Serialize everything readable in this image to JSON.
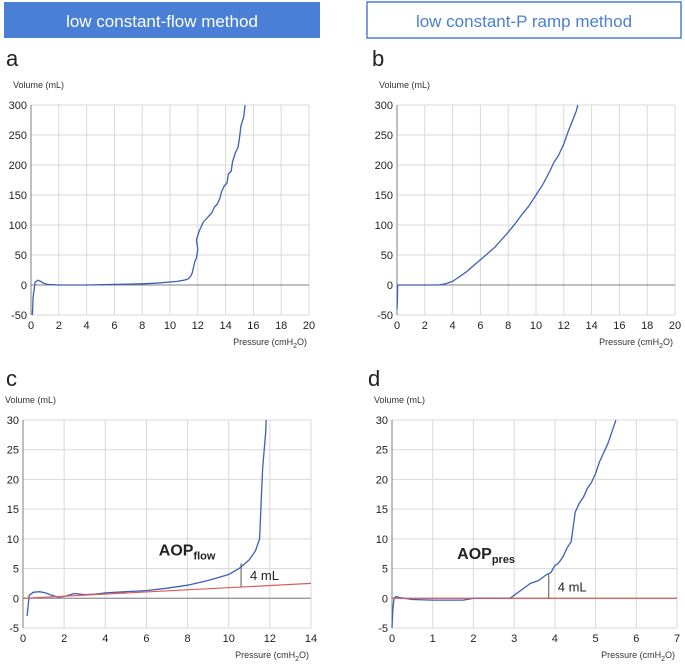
{
  "headers": {
    "left": "low constant-flow method",
    "right": "low constant-P ramp method",
    "left_fill": "#4a7fd6",
    "right_border": "#4a7fd6"
  },
  "colors": {
    "curve": "#3d5fb8",
    "fit_line": "#e05a5a",
    "grid": "#d9d9d9",
    "axis": "#7f7f7f",
    "marker": "#555555"
  },
  "chart_data": [
    {
      "panel": "a",
      "type": "line",
      "ylabel": "Volume (mL)",
      "xlabel": "Pressure (cmH2O)",
      "xlim": [
        0,
        20
      ],
      "ylim": [
        -50,
        300
      ],
      "xticks": [
        0,
        2,
        4,
        6,
        8,
        10,
        12,
        14,
        16,
        18,
        20
      ],
      "yticks": [
        -50,
        0,
        50,
        100,
        150,
        200,
        250,
        300
      ],
      "grid": true,
      "series": [
        {
          "x": [
            0.1,
            0.15,
            0.3,
            0.5,
            0.7,
            0.9,
            1.2,
            2,
            4,
            6,
            8,
            9,
            10,
            10.5,
            11,
            11.3,
            11.5,
            11.6,
            11.7,
            11.8,
            11.9,
            12.0,
            11.9,
            12.1,
            12.3,
            12.4,
            12.6,
            12.8,
            13.0,
            13.2,
            13.4,
            13.6,
            13.7,
            13.9,
            14.1,
            14.2,
            14.4,
            14.5,
            14.7,
            14.9,
            15.0,
            15.1,
            15.3,
            15.4
          ],
          "y": [
            -50,
            -20,
            5,
            8,
            6,
            3,
            1,
            0,
            0,
            1,
            2,
            3,
            5,
            6,
            8,
            10,
            15,
            20,
            30,
            40,
            45,
            60,
            75,
            90,
            100,
            105,
            110,
            115,
            120,
            130,
            135,
            145,
            155,
            165,
            170,
            185,
            190,
            205,
            220,
            230,
            245,
            265,
            280,
            300
          ]
        }
      ]
    },
    {
      "panel": "b",
      "type": "line",
      "ylabel": "Volume (mL)",
      "xlabel": "Pressure (cmH2O)",
      "xlim": [
        0,
        20
      ],
      "ylim": [
        -50,
        300
      ],
      "xticks": [
        0,
        2,
        4,
        6,
        8,
        10,
        12,
        14,
        16,
        18,
        20
      ],
      "yticks": [
        -50,
        0,
        50,
        100,
        150,
        200,
        250,
        300
      ],
      "grid": true,
      "series": [
        {
          "x": [
            0,
            0.02,
            0.05,
            1,
            2,
            3,
            3.5,
            4,
            4.5,
            5,
            5.5,
            6,
            6.5,
            7,
            7.5,
            8,
            8.5,
            9,
            9.5,
            10,
            10.5,
            11,
            11.3,
            11.6,
            12,
            12.3,
            12.6,
            12.9,
            13.0
          ],
          "y": [
            -40,
            -30,
            0,
            0,
            0,
            0,
            2,
            6,
            14,
            22,
            32,
            42,
            52,
            62,
            75,
            88,
            102,
            118,
            132,
            150,
            168,
            190,
            205,
            215,
            235,
            255,
            272,
            290,
            300
          ]
        }
      ]
    },
    {
      "panel": "c",
      "type": "line",
      "ylabel": "Volume (mL)",
      "xlabel": "Pressure (cmH2O)",
      "xlim": [
        0,
        14
      ],
      "ylim": [
        -5,
        30
      ],
      "xticks": [
        0,
        2,
        4,
        6,
        8,
        10,
        12,
        14
      ],
      "yticks": [
        -5,
        0,
        5,
        10,
        15,
        20,
        25,
        30
      ],
      "grid": true,
      "annotation": "AOP",
      "annotation_sub": "flow",
      "marker_text": "4 mL",
      "marker_x": 10.6,
      "series": [
        {
          "x": [
            0.2,
            0.3,
            0.5,
            0.8,
            1.1,
            1.4,
            1.7,
            2.0,
            2.5,
            3.0,
            3.5,
            4.0,
            5.0,
            6.0,
            7.0,
            8.0,
            9.0,
            10.0,
            10.5,
            11.0,
            11.3,
            11.5,
            11.55,
            11.6,
            11.65,
            11.7,
            11.75,
            11.8,
            11.82
          ],
          "y": [
            -3,
            0.5,
            1.0,
            1.1,
            0.9,
            0.5,
            0.2,
            0.3,
            0.8,
            0.6,
            0.7,
            0.9,
            1.1,
            1.3,
            1.7,
            2.2,
            3.0,
            4.0,
            5.0,
            6.5,
            8.0,
            10.0,
            14,
            18,
            22,
            24,
            26,
            28,
            30
          ]
        },
        {
          "name": "fit",
          "x": [
            0,
            14
          ],
          "y": [
            0,
            2.5
          ]
        }
      ]
    },
    {
      "panel": "d",
      "type": "line",
      "ylabel": "Volume (mL)",
      "xlabel": "Pressure (cmH2O)",
      "xlim": [
        0,
        7
      ],
      "ylim": [
        -5,
        30
      ],
      "xticks": [
        0,
        1,
        2,
        3,
        4,
        5,
        6,
        7
      ],
      "yticks": [
        -5,
        0,
        5,
        10,
        15,
        20,
        25,
        30
      ],
      "grid": true,
      "annotation": "AOP",
      "annotation_sub": "pres",
      "marker_text": "4 mL",
      "marker_x": 3.85,
      "series": [
        {
          "x": [
            0,
            0.02,
            0.05,
            0.1,
            0.2,
            0.5,
            1.0,
            1.5,
            1.75,
            2.0,
            2.5,
            2.9,
            3.0,
            3.2,
            3.4,
            3.6,
            3.8,
            3.9,
            4.0,
            4.1,
            4.2,
            4.3,
            4.4,
            4.45,
            4.5,
            4.6,
            4.7,
            4.8,
            4.9,
            5.0,
            5.1,
            5.2,
            5.3,
            5.4,
            5.5
          ],
          "y": [
            -5,
            -2,
            0,
            0.3,
            0.1,
            -0.2,
            -0.3,
            -0.3,
            -0.3,
            0,
            0,
            0,
            0.5,
            1.5,
            2.5,
            3.0,
            4.0,
            4.3,
            5.5,
            6.0,
            7.0,
            8.5,
            9.5,
            12,
            14.5,
            16,
            17,
            18.5,
            19.5,
            21,
            23,
            24.5,
            26,
            28,
            30
          ]
        },
        {
          "name": "fit",
          "x": [
            0,
            7
          ],
          "y": [
            0,
            0
          ]
        }
      ]
    }
  ]
}
